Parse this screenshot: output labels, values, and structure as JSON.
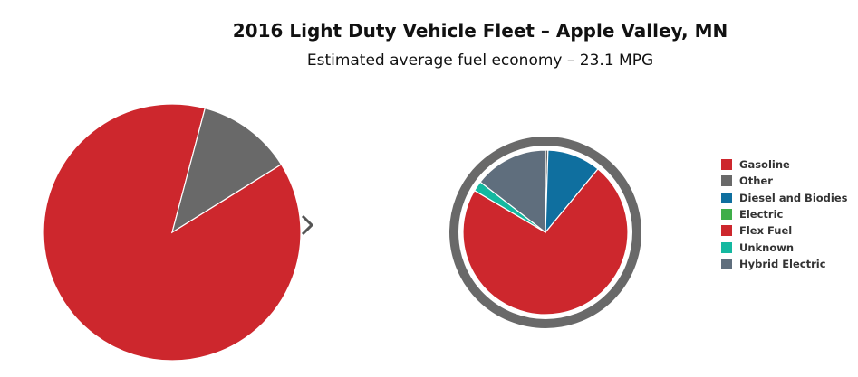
{
  "title": "2016 Light Duty Vehicle Fleet – Apple Valley, MN",
  "subtitle": "Estimated average fuel economy – 23.1 MPG",
  "icons": {
    "drilldown_arrow": "chevron-right-icon"
  },
  "chart_data": [
    {
      "type": "pie",
      "categories": [
        "Gasoline",
        "Other"
      ],
      "values": [
        88,
        12
      ],
      "colors": [
        "#cd272d",
        "#696969"
      ],
      "start_angle_deg": 58,
      "legend": "none"
    },
    {
      "type": "pie",
      "categories": [
        "Gasoline",
        "Other",
        "Diesel and Biodies",
        "Electric",
        "Flex Fuel",
        "Unknown",
        "Hybrid Electric"
      ],
      "values": [
        0,
        0.5,
        10.5,
        0,
        72.5,
        2.0,
        14.5
      ],
      "colors": [
        "#cd272d",
        "#696969",
        "#0f6f9f",
        "#3fae49",
        "#cd272d",
        "#14b8a0",
        "#5f6e7d"
      ],
      "ring_color": "#696969",
      "start_angle_deg": 0,
      "legend": "right"
    }
  ]
}
